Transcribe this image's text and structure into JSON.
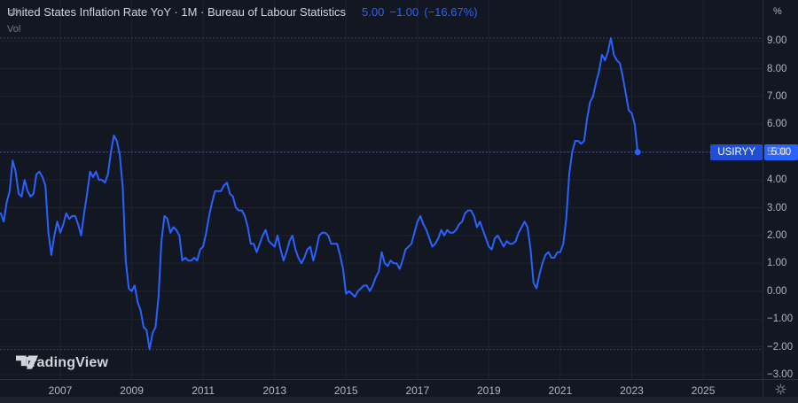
{
  "header": {
    "title": "United States Inflation Rate YoY · 1M · Bureau of Labour Statistics",
    "value": "5.00",
    "change": "−1.00",
    "change_pct": "(−16.67%)",
    "vol_label": "Vol"
  },
  "price_scale": {
    "unit_label": "%",
    "symbol_label": "USIRYY",
    "last_price_label": "5.00"
  },
  "footer": {
    "logo_text": "TradingView"
  },
  "colors": {
    "background": "#131722",
    "line": "#2962ff",
    "last_price_box": "#2962ff",
    "symbol_label_box": "#1e4fd6",
    "grid": "#1d222e",
    "axis_border": "#2a2e39",
    "axis_text": "#b2b5be",
    "muted_text": "#787b86",
    "hl_dotted": "#4a4d57"
  },
  "chart_data": {
    "type": "line",
    "title": "United States Inflation Rate YoY",
    "symbol": "USIRYY",
    "source": "Bureau of Labour Statistics",
    "frequency": "1M",
    "unit": "%",
    "start": "2005-05",
    "end": "2023-03",
    "last_value": 5.0,
    "high_line": 9.1,
    "low_line": -2.1,
    "y_ticks": [
      9,
      8,
      7,
      6,
      5,
      4,
      3,
      2,
      1,
      0,
      -1,
      -2,
      -3
    ],
    "x_ticks": [
      2007,
      2009,
      2011,
      2013,
      2015,
      2017,
      2019,
      2021,
      2023,
      2025
    ],
    "ylim": [
      -3.2,
      10.5
    ],
    "legend_position": "top-left",
    "grid": true,
    "values": [
      2.8,
      2.5,
      3.2,
      3.6,
      4.7,
      4.3,
      3.5,
      3.4,
      4.0,
      3.6,
      3.4,
      3.5,
      4.2,
      4.3,
      4.1,
      3.8,
      2.1,
      1.3,
      2.0,
      2.5,
      2.1,
      2.4,
      2.8,
      2.6,
      2.7,
      2.7,
      2.4,
      2.0,
      2.8,
      3.5,
      4.3,
      4.1,
      4.3,
      4.0,
      4.0,
      3.9,
      4.2,
      5.0,
      5.6,
      5.4,
      4.9,
      3.7,
      1.1,
      0.1,
      0.0,
      0.2,
      -0.4,
      -0.7,
      -1.3,
      -1.4,
      -2.1,
      -1.5,
      -1.3,
      -0.2,
      1.8,
      2.7,
      2.6,
      2.1,
      2.3,
      2.2,
      2.0,
      1.1,
      1.2,
      1.1,
      1.1,
      1.2,
      1.1,
      1.5,
      1.6,
      2.1,
      2.7,
      3.2,
      3.6,
      3.6,
      3.6,
      3.8,
      3.9,
      3.5,
      3.4,
      3.0,
      2.9,
      2.9,
      2.7,
      2.3,
      1.7,
      1.7,
      1.4,
      1.7,
      2.0,
      2.2,
      1.8,
      1.7,
      1.6,
      2.0,
      1.5,
      1.1,
      1.4,
      1.8,
      2.0,
      1.5,
      1.2,
      1.0,
      1.2,
      1.5,
      1.6,
      1.1,
      1.5,
      2.0,
      2.1,
      2.1,
      2.0,
      1.7,
      1.7,
      1.7,
      1.3,
      0.8,
      -0.1,
      0.0,
      -0.1,
      -0.2,
      0.0,
      0.1,
      0.2,
      0.2,
      0.0,
      0.2,
      0.5,
      0.7,
      1.4,
      1.0,
      0.9,
      1.1,
      1.0,
      1.0,
      0.8,
      1.1,
      1.5,
      1.6,
      1.7,
      2.1,
      2.5,
      2.7,
      2.4,
      2.2,
      1.9,
      1.6,
      1.7,
      1.9,
      2.2,
      2.0,
      2.2,
      2.1,
      2.1,
      2.2,
      2.4,
      2.5,
      2.8,
      2.9,
      2.9,
      2.7,
      2.3,
      2.5,
      2.2,
      1.9,
      1.6,
      1.5,
      1.9,
      2.0,
      1.8,
      1.6,
      1.8,
      1.7,
      1.7,
      1.8,
      2.1,
      2.3,
      2.5,
      2.3,
      1.5,
      0.3,
      0.1,
      0.6,
      1.0,
      1.3,
      1.4,
      1.2,
      1.2,
      1.4,
      1.4,
      1.7,
      2.6,
      4.2,
      5.0,
      5.4,
      5.4,
      5.3,
      5.4,
      6.2,
      6.8,
      7.0,
      7.5,
      7.9,
      8.5,
      8.3,
      8.6,
      9.1,
      8.5,
      8.3,
      8.2,
      7.7,
      7.1,
      6.5,
      6.4,
      6.0,
      5.0
    ]
  }
}
